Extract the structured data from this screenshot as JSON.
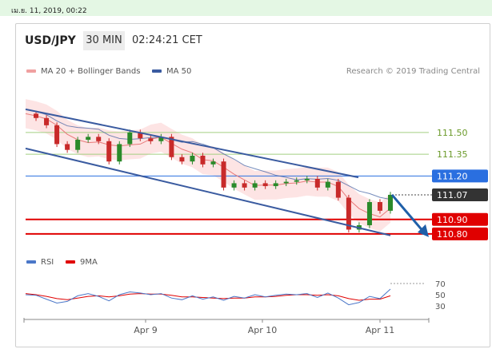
{
  "timestamp": "เม.ย. 11, 2019, 00:22",
  "header": {
    "symbol": "USD/JPY",
    "timeframe": "30 MIN",
    "time": "02:24:21 CET"
  },
  "source": "Research © 2019 Trading Central",
  "colors": {
    "ma20": "#f0a0a0",
    "ma50": "#3a5ba0",
    "band": "#fde1e1",
    "resistance": "#2a6fe0",
    "support": "#e00000",
    "level": "#a3cf80",
    "rsi": "#4b77c8",
    "rsi_ma": "#e00000",
    "up": "#2a8a2a",
    "down": "#c82a2a",
    "arrow": "#1f5fa8"
  },
  "chart_data": [
    {
      "type": "candlestick",
      "legend": [
        {
          "name": "MA 20 + Bollinger Bands",
          "color": "#f0a0a0"
        },
        {
          "name": "MA 50",
          "color": "#3a5ba0"
        }
      ],
      "x_ticks": [
        "Apr 9",
        "Apr 10",
        "Apr 11"
      ],
      "y_range": [
        110.75,
        111.72
      ],
      "levels": [
        {
          "value": 111.5,
          "label": "111.50",
          "style": "green-line"
        },
        {
          "value": 111.35,
          "label": "111.35",
          "style": "green-line"
        },
        {
          "value": 111.2,
          "label": "111.20",
          "style": "blue-tag"
        },
        {
          "value": 111.07,
          "label": "111.07",
          "style": "current-dark-tag"
        },
        {
          "value": 110.9,
          "label": "110.90",
          "style": "red-tag"
        },
        {
          "value": 110.8,
          "label": "110.80",
          "style": "red-tag"
        }
      ],
      "channel": {
        "upper": [
          111.66,
          111.19
        ],
        "lower": [
          111.39,
          110.79
        ]
      },
      "forecast_arrow": {
        "from": 111.07,
        "to": 110.8
      },
      "close_path": [
        111.63,
        111.6,
        111.55,
        111.42,
        111.38,
        111.45,
        111.47,
        111.44,
        111.3,
        111.42,
        111.5,
        111.46,
        111.44,
        111.47,
        111.33,
        111.3,
        111.34,
        111.28,
        111.3,
        111.12,
        111.15,
        111.12,
        111.15,
        111.13,
        111.15,
        111.16,
        111.17,
        111.18,
        111.12,
        111.16,
        111.05,
        110.83,
        110.86,
        111.02,
        110.96,
        111.07
      ]
    },
    {
      "type": "line",
      "legend": [
        {
          "name": "RSI",
          "color": "#4b77c8"
        },
        {
          "name": "9MA",
          "color": "#e00000"
        }
      ],
      "y_ticks": [
        70,
        50,
        30
      ],
      "ylim": [
        20,
        80
      ],
      "rsi_path": [
        50,
        49,
        42,
        35,
        38,
        48,
        52,
        47,
        39,
        50,
        55,
        53,
        50,
        52,
        44,
        41,
        48,
        42,
        46,
        40,
        47,
        44,
        50,
        46,
        49,
        51,
        50,
        52,
        45,
        53,
        44,
        32,
        36,
        47,
        43,
        60
      ],
      "ma9_path": [
        52,
        50,
        47,
        43,
        41,
        44,
        47,
        48,
        46,
        48,
        51,
        52,
        51,
        51,
        49,
        46,
        46,
        45,
        44,
        43,
        44,
        44,
        46,
        46,
        47,
        49,
        50,
        50,
        49,
        50,
        48,
        43,
        40,
        42,
        42,
        48
      ]
    }
  ]
}
